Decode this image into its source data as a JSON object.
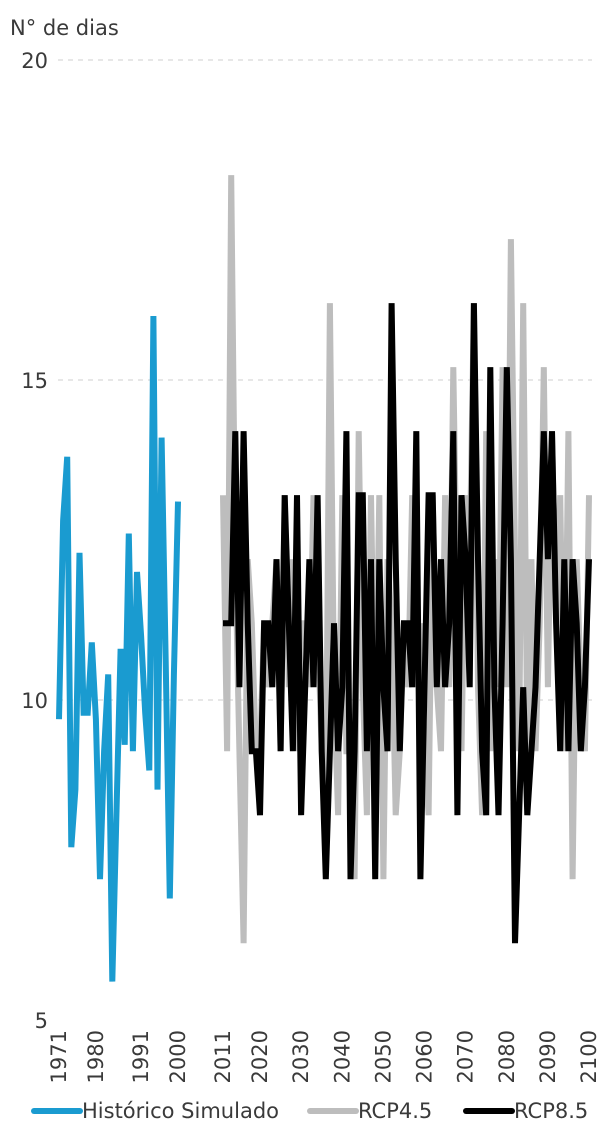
{
  "chart_data": {
    "type": "line",
    "ylabel": "N° de dias",
    "ylim": [
      5,
      20
    ],
    "yticks": [
      "5",
      "10",
      "15",
      "20"
    ],
    "grid": true,
    "legend_position": "bottom",
    "xtick_labels": [
      "1971",
      "1980",
      "1991",
      "2000",
      "2011",
      "2020",
      "2030",
      "2040",
      "2050",
      "2060",
      "2070",
      "2080",
      "2090",
      "2100"
    ],
    "xtick_years": [
      1971,
      1980,
      1991,
      2000,
      2011,
      2020,
      2030,
      2040,
      2050,
      2060,
      2070,
      2080,
      2090,
      2100
    ],
    "series": [
      {
        "name": "Histórico Simulado",
        "color": "#1a9bd0",
        "x": [
          1971,
          1972,
          1973,
          1974,
          1975,
          1976,
          1977,
          1978,
          1979,
          1980,
          1981,
          1982,
          1983,
          1984,
          1985,
          1986,
          1987,
          1988,
          1989,
          1990,
          1991,
          1992,
          1993,
          1994,
          1995,
          1996,
          1997,
          1998,
          1999,
          2000
        ],
        "values": [
          9.7,
          12.8,
          13.8,
          7.7,
          8.6,
          12.3,
          9.8,
          9.8,
          10.9,
          9.7,
          7.2,
          9.2,
          10.4,
          5.6,
          8.2,
          10.8,
          9.3,
          12.6,
          9.2,
          12.0,
          11.0,
          9.8,
          8.9,
          16.0,
          8.6,
          14.1,
          10.6,
          6.9,
          10.4,
          13.1
        ]
      },
      {
        "name": "RCP4.5",
        "color": "#bdbdbd",
        "x": [
          2011,
          2012,
          2013,
          2014,
          2015,
          2016,
          2017,
          2018,
          2019,
          2020,
          2021,
          2022,
          2023,
          2024,
          2025,
          2026,
          2027,
          2028,
          2029,
          2030,
          2031,
          2032,
          2033,
          2034,
          2035,
          2036,
          2037,
          2038,
          2039,
          2040,
          2041,
          2042,
          2043,
          2044,
          2045,
          2046,
          2047,
          2048,
          2049,
          2050,
          2051,
          2052,
          2053,
          2054,
          2055,
          2056,
          2057,
          2058,
          2059,
          2060,
          2061,
          2062,
          2063,
          2064,
          2065,
          2066,
          2067,
          2068,
          2069,
          2070,
          2071,
          2072,
          2073,
          2074,
          2075,
          2076,
          2077,
          2078,
          2079,
          2080,
          2081,
          2082,
          2083,
          2084,
          2085,
          2086,
          2087,
          2088,
          2089,
          2090,
          2091,
          2092,
          2093,
          2094,
          2095,
          2096,
          2097,
          2098,
          2099,
          2100
        ],
        "values": [
          13.2,
          9.2,
          18.2,
          12.2,
          9.2,
          6.2,
          12.2,
          11.2,
          9.2,
          9.2,
          11.2,
          10.2,
          11.2,
          12.2,
          9.2,
          13.2,
          10.2,
          12.2,
          9.2,
          11.2,
          11.2,
          10.2,
          13.2,
          11.2,
          9.2,
          8.2,
          16.2,
          10.2,
          8.2,
          13.2,
          9.2,
          9.2,
          7.2,
          14.2,
          10.2,
          8.2,
          13.2,
          9.2,
          13.2,
          7.2,
          12.2,
          11.2,
          8.2,
          9.2,
          11.2,
          10.2,
          13.2,
          10.2,
          11.2,
          9.2,
          8.2,
          13.2,
          10.2,
          9.2,
          13.2,
          10.2,
          15.2,
          11.2,
          9.2,
          13.2,
          12.2,
          16.2,
          10.2,
          8.2,
          14.2,
          9.2,
          12.2,
          10.2,
          15.2,
          10.2,
          17.2,
          12.2,
          9.2,
          16.2,
          9.2,
          12.2,
          9.2,
          11.2,
          15.2,
          10.2,
          14.2,
          11.2,
          13.2,
          9.2,
          14.2,
          7.2,
          12.2,
          10.2,
          9.2,
          13.2
        ]
      },
      {
        "name": "RCP8.5",
        "color": "#000000",
        "x": [
          2011,
          2012,
          2013,
          2014,
          2015,
          2016,
          2017,
          2018,
          2019,
          2020,
          2021,
          2022,
          2023,
          2024,
          2025,
          2026,
          2027,
          2028,
          2029,
          2030,
          2031,
          2032,
          2033,
          2034,
          2035,
          2036,
          2037,
          2038,
          2039,
          2040,
          2041,
          2042,
          2043,
          2044,
          2045,
          2046,
          2047,
          2048,
          2049,
          2050,
          2051,
          2052,
          2053,
          2054,
          2055,
          2056,
          2057,
          2058,
          2059,
          2060,
          2061,
          2062,
          2063,
          2064,
          2065,
          2066,
          2067,
          2068,
          2069,
          2070,
          2071,
          2072,
          2073,
          2074,
          2075,
          2076,
          2077,
          2078,
          2079,
          2080,
          2081,
          2082,
          2083,
          2084,
          2085,
          2086,
          2087,
          2088,
          2089,
          2090,
          2091,
          2092,
          2093,
          2094,
          2095,
          2096,
          2097,
          2098,
          2099,
          2100
        ],
        "values": [
          11.2,
          11.2,
          11.2,
          14.2,
          10.2,
          14.2,
          11.2,
          9.2,
          9.2,
          8.2,
          11.2,
          11.2,
          10.2,
          12.2,
          9.2,
          13.2,
          11.2,
          9.2,
          13.2,
          8.2,
          10.2,
          12.2,
          10.2,
          13.2,
          9.2,
          7.2,
          9.2,
          11.2,
          9.2,
          10.2,
          14.2,
          7.2,
          9.2,
          13.2,
          13.2,
          9.2,
          12.2,
          7.2,
          12.2,
          10.2,
          9.2,
          16.2,
          12.2,
          9.2,
          11.2,
          11.2,
          10.2,
          14.2,
          7.2,
          10.2,
          13.2,
          13.2,
          10.2,
          12.2,
          10.2,
          11.2,
          14.2,
          8.2,
          13.2,
          12.2,
          10.2,
          16.2,
          12.2,
          9.2,
          8.2,
          15.2,
          10.2,
          8.2,
          11.2,
          15.2,
          12.2,
          6.2,
          8.2,
          10.2,
          8.2,
          9.2,
          10.2,
          12.2,
          14.2,
          12.2,
          14.2,
          11.2,
          9.2,
          12.2,
          9.2,
          12.2,
          11.2,
          9.2,
          10.2,
          12.2
        ]
      }
    ]
  }
}
